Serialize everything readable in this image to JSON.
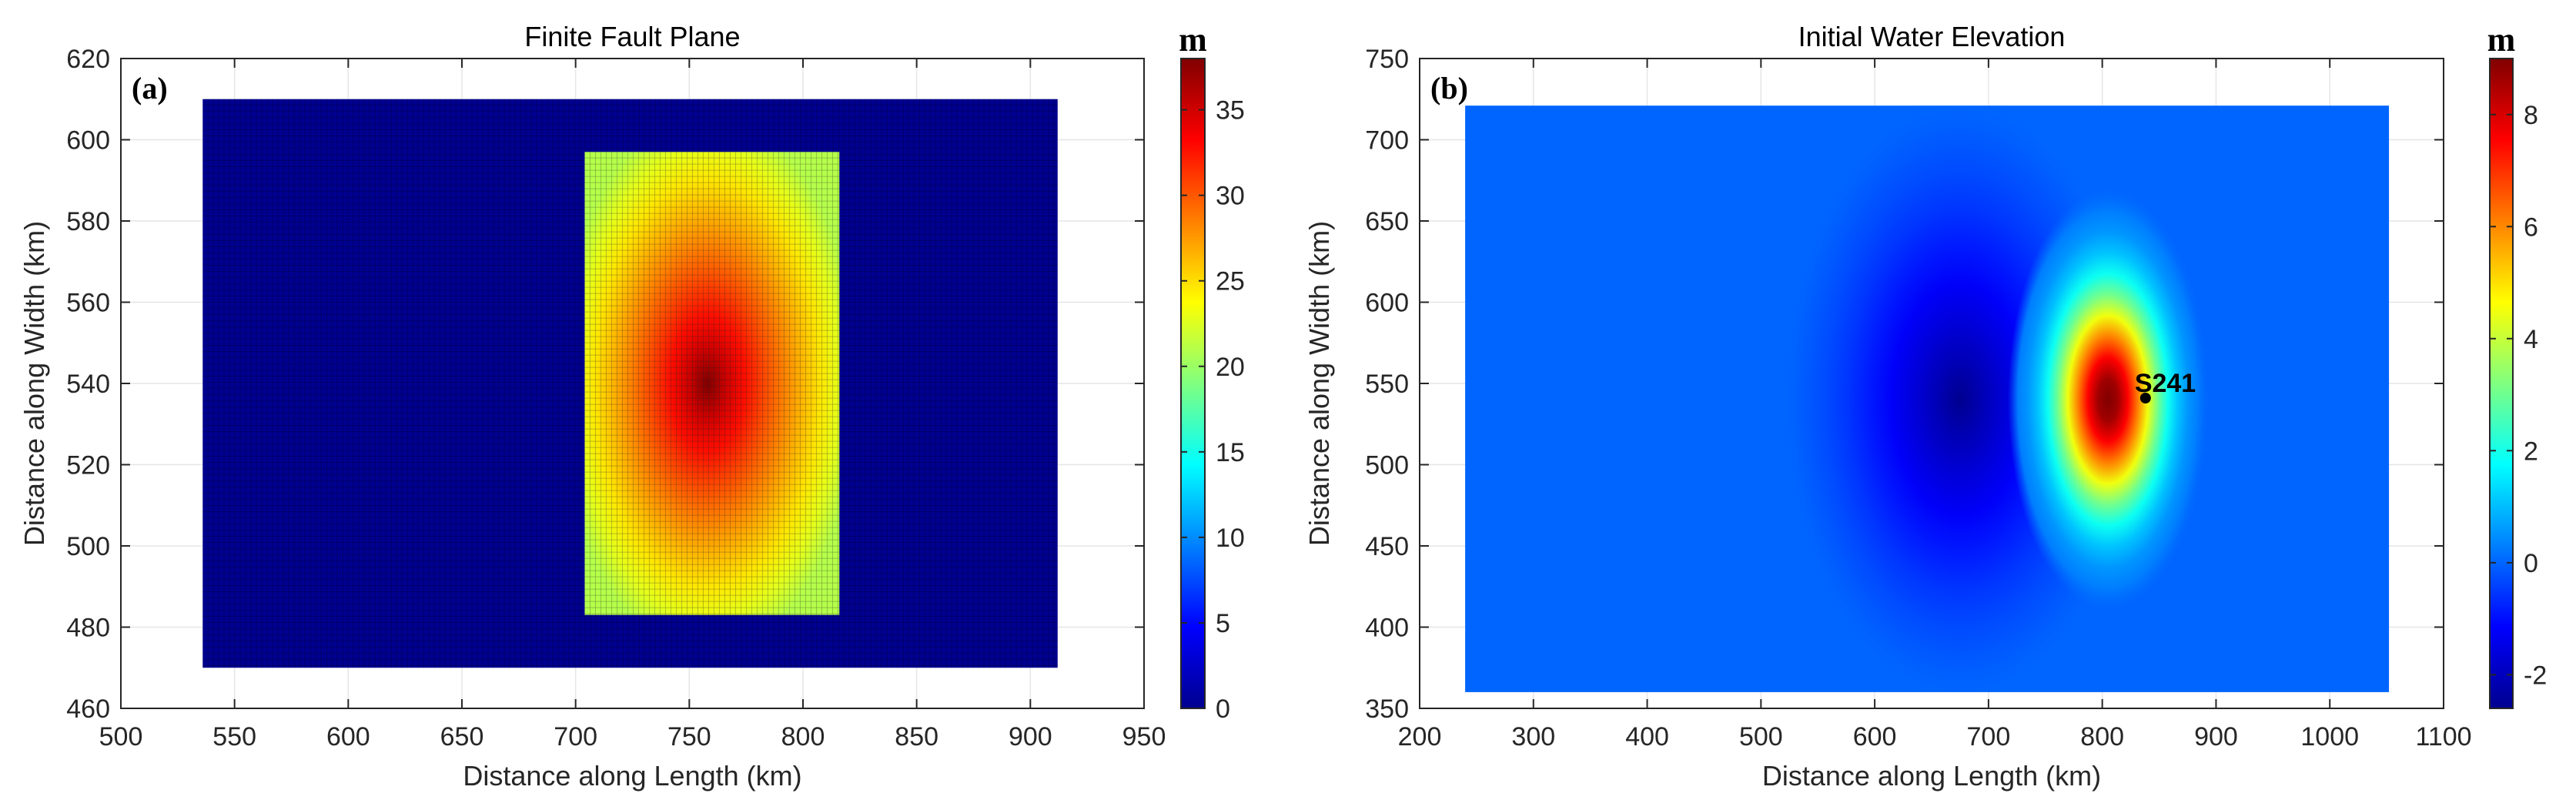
{
  "chart_data": [
    {
      "type": "heatmap",
      "panel_label": "(a)",
      "title": "Finite Fault Plane",
      "xlabel": "Distance along Length (km)",
      "ylabel": "Distance along Width (km)",
      "xlim": [
        500,
        950
      ],
      "ylim": [
        460,
        620
      ],
      "xticks": [
        500,
        550,
        600,
        650,
        700,
        750,
        800,
        850,
        900,
        950
      ],
      "yticks": [
        460,
        480,
        500,
        520,
        540,
        560,
        580,
        600,
        620
      ],
      "colorbar": {
        "unit": "m",
        "range": [
          0,
          38
        ],
        "ticks": [
          0,
          5,
          10,
          15,
          20,
          25,
          30,
          35
        ],
        "colormap": "jet"
      },
      "fault_plane": {
        "x": [
          536,
          912
        ],
        "y": [
          470,
          610
        ],
        "slip_m": 0
      },
      "slip_patch": {
        "x": [
          704,
          816
        ],
        "y": [
          483,
          597
        ],
        "peak_slip_m": 38,
        "edge_slip_m": 21,
        "peak_at": [
          758,
          540
        ]
      },
      "grid": true
    },
    {
      "type": "heatmap",
      "panel_label": "(b)",
      "title": "Initial Water Elevation",
      "xlabel": "Distance along Length (km)",
      "ylabel": "Distance along Width (km)",
      "xlim": [
        200,
        1100
      ],
      "ylim": [
        350,
        750
      ],
      "xticks": [
        200,
        300,
        400,
        500,
        600,
        700,
        800,
        900,
        1000,
        1100
      ],
      "yticks": [
        350,
        400,
        450,
        500,
        550,
        600,
        650,
        700,
        750
      ],
      "colorbar": {
        "unit": "m",
        "range": [
          -2.6,
          9
        ],
        "ticks": [
          -2,
          0,
          2,
          4,
          6,
          8
        ],
        "colormap": "jet"
      },
      "domain": {
        "x": [
          240,
          1052
        ],
        "y": [
          360,
          721
        ]
      },
      "uplift": {
        "center": [
          805,
          540
        ],
        "peak_m": 9
      },
      "subsidence": {
        "center": [
          675,
          540
        ],
        "min_m": -2.6
      },
      "station": {
        "name": "S241",
        "x": 838,
        "y": 541
      },
      "grid": true
    }
  ]
}
